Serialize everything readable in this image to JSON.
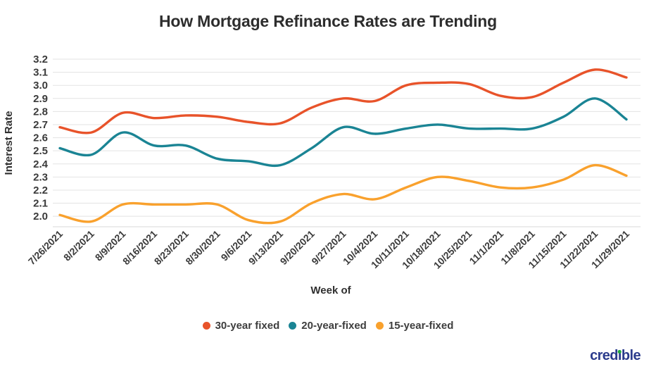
{
  "chart_data": {
    "type": "line",
    "title": "How Mortgage Refinance Rates are Trending",
    "xlabel": "Week of",
    "ylabel": "Interest Rate",
    "ylim": [
      1.92,
      3.2
    ],
    "yticks": [
      3.2,
      3.1,
      3.0,
      2.9,
      2.8,
      2.7,
      2.6,
      2.5,
      2.4,
      2.3,
      2.2,
      2.1,
      2.0
    ],
    "grid": true,
    "legend_position": "bottom",
    "categories": [
      "7/26/2021",
      "8/2/2021",
      "8/9/2021",
      "8/16/2021",
      "8/23/2021",
      "8/30/2021",
      "9/6/2021",
      "9/13/2021",
      "9/20/2021",
      "9/27/2021",
      "10/4/2021",
      "10/11/2021",
      "10/18/2021",
      "10/25/2021",
      "11/1/2021",
      "11/8/2021",
      "11/15/2021",
      "11/22/2021",
      "11/29/2021"
    ],
    "series": [
      {
        "name": "30-year fixed",
        "color": "#E8532A",
        "values": [
          2.68,
          2.64,
          2.79,
          2.75,
          2.77,
          2.76,
          2.72,
          2.71,
          2.83,
          2.9,
          2.88,
          3.0,
          3.02,
          3.01,
          2.92,
          2.91,
          3.02,
          3.12,
          3.06
        ]
      },
      {
        "name": "20-year-fixed",
        "color": "#1A8494",
        "values": [
          2.52,
          2.47,
          2.64,
          2.54,
          2.54,
          2.44,
          2.42,
          2.39,
          2.52,
          2.68,
          2.63,
          2.67,
          2.7,
          2.67,
          2.67,
          2.67,
          2.76,
          2.9,
          2.74
        ]
      },
      {
        "name": "15-year-fixed",
        "color": "#F9A12D",
        "values": [
          2.01,
          1.96,
          2.09,
          2.09,
          2.09,
          2.09,
          1.97,
          1.96,
          2.1,
          2.17,
          2.13,
          2.22,
          2.3,
          2.27,
          2.22,
          2.22,
          2.28,
          2.39,
          2.31
        ]
      }
    ]
  },
  "footer": {
    "logo_text": "credible"
  }
}
